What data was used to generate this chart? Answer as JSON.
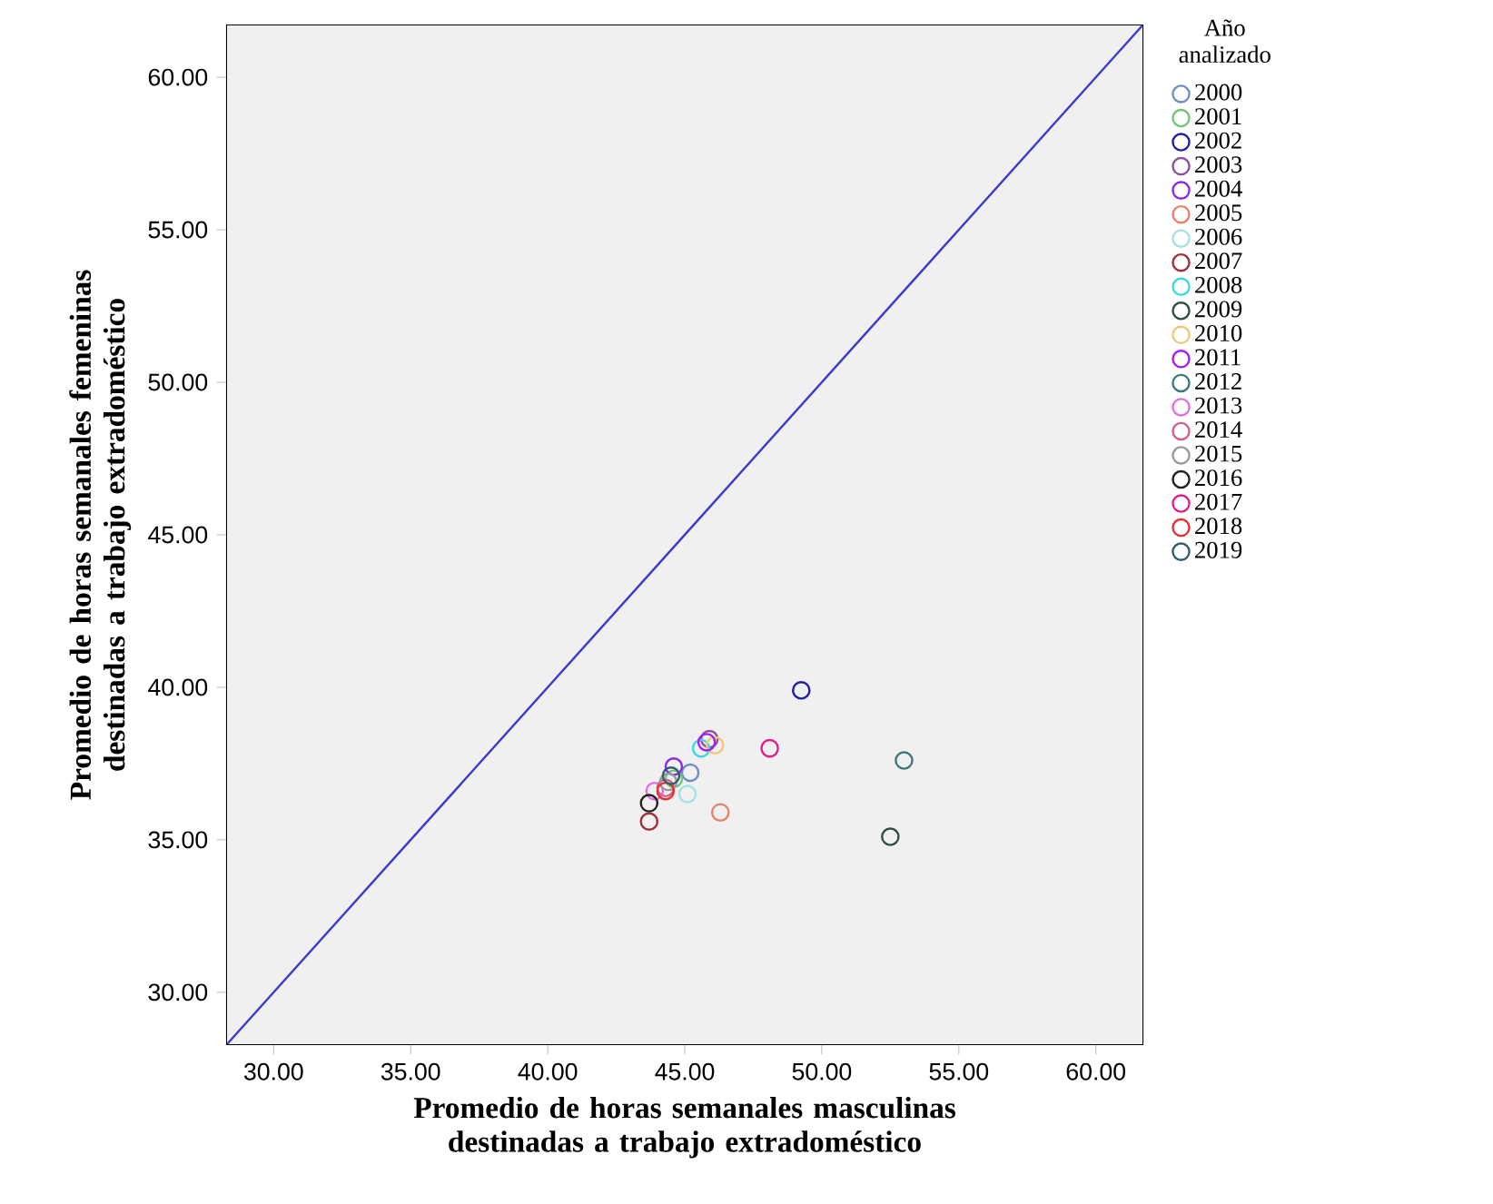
{
  "chart_data": {
    "type": "scatter",
    "xlabel": "Promedio de horas semanales masculinas destinadas a trabajo extradoméstico",
    "ylabel": "Promedio de horas semanales femeninas destinadas a trabajo extradoméstico",
    "legend_title": "Año analizado",
    "legend": "right",
    "marker": "circle",
    "xlim": [
      28.3,
      61.7
    ],
    "ylim": [
      28.3,
      61.7
    ],
    "xticks": [
      {
        "value": 30,
        "label": "30.00"
      },
      {
        "value": 35,
        "label": "35.00"
      },
      {
        "value": 40,
        "label": "40.00"
      },
      {
        "value": 45,
        "label": "45.00"
      },
      {
        "value": 50,
        "label": "50.00"
      },
      {
        "value": 55,
        "label": "55.00"
      },
      {
        "value": 60,
        "label": "60.00"
      }
    ],
    "yticks": [
      {
        "value": 30,
        "label": "30.00"
      },
      {
        "value": 35,
        "label": "35.00"
      },
      {
        "value": 40,
        "label": "40.00"
      },
      {
        "value": 45,
        "label": "45.00"
      },
      {
        "value": 50,
        "label": "50.00"
      },
      {
        "value": 55,
        "label": "55.00"
      },
      {
        "value": 60,
        "label": "60.00"
      }
    ],
    "series": [
      {
        "type": "line",
        "marker": "none",
        "color": "#3b3bc8",
        "x": [
          28.3,
          61.7
        ],
        "values": [
          28.3,
          61.7
        ]
      },
      {
        "name": "2000",
        "color": "#6f8fc0",
        "x": [
          45.2
        ],
        "values": [
          37.2
        ]
      },
      {
        "name": "2001",
        "color": "#74c476",
        "x": [
          44.6
        ],
        "values": [
          37.0
        ]
      },
      {
        "name": "2002",
        "color": "#2020a0",
        "x": [
          49.25
        ],
        "values": [
          39.9
        ]
      },
      {
        "name": "2003",
        "color": "#8e4f9e",
        "x": [
          45.9
        ],
        "values": [
          38.3
        ]
      },
      {
        "name": "2004",
        "color": "#8a2be2",
        "x": [
          44.6
        ],
        "values": [
          37.4
        ]
      },
      {
        "name": "2005",
        "color": "#e8826a",
        "x": [
          46.3
        ],
        "values": [
          35.9
        ]
      },
      {
        "name": "2006",
        "color": "#a6e0e0",
        "x": [
          45.1
        ],
        "values": [
          36.5
        ]
      },
      {
        "name": "2007",
        "color": "#a0303a",
        "x": [
          43.7
        ],
        "values": [
          35.6
        ]
      },
      {
        "name": "2008",
        "color": "#40d8e0",
        "x": [
          45.6
        ],
        "values": [
          38.0
        ]
      },
      {
        "name": "2009",
        "color": "#2f4f3f",
        "x": [
          52.5
        ],
        "values": [
          35.1
        ]
      },
      {
        "name": "2010",
        "color": "#f0c878",
        "x": [
          46.1
        ],
        "values": [
          38.1
        ]
      },
      {
        "name": "2011",
        "color": "#a020f0",
        "x": [
          45.8
        ],
        "values": [
          38.2
        ]
      },
      {
        "name": "2012",
        "color": "#3a7a7a",
        "x": [
          53.0
        ],
        "values": [
          37.6
        ]
      },
      {
        "name": "2013",
        "color": "#e070e0",
        "x": [
          43.9
        ],
        "values": [
          36.6
        ]
      },
      {
        "name": "2014",
        "color": "#d06090",
        "x": [
          44.3
        ],
        "values": [
          36.7
        ]
      },
      {
        "name": "2015",
        "color": "#999999",
        "x": [
          44.4
        ],
        "values": [
          36.9
        ]
      },
      {
        "name": "2016",
        "color": "#202020",
        "x": [
          43.7
        ],
        "values": [
          36.2
        ]
      },
      {
        "name": "2017",
        "color": "#e0208a",
        "x": [
          48.1
        ],
        "values": [
          38.0
        ]
      },
      {
        "name": "2018",
        "color": "#e83030",
        "x": [
          44.3
        ],
        "values": [
          36.6
        ]
      },
      {
        "name": "2019",
        "color": "#2f5f6f",
        "x": [
          44.5
        ],
        "values": [
          37.1
        ]
      }
    ]
  }
}
